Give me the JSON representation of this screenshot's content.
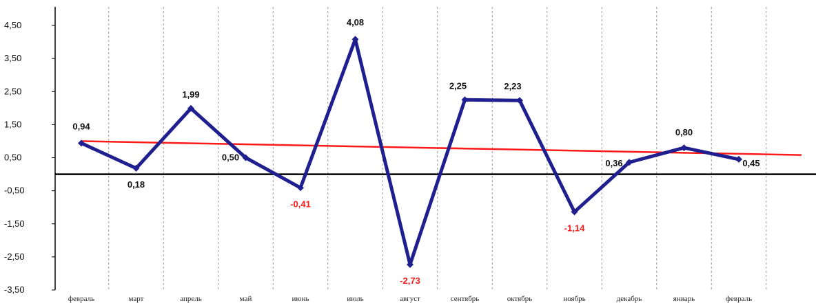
{
  "chart_data": {
    "type": "line",
    "title": "",
    "xlabel": "",
    "ylabel": "",
    "ylim": [
      -3.5,
      4.5
    ],
    "yticks": [
      "4,50",
      "3,50",
      "2,50",
      "1,50",
      "0,50",
      "-0,50",
      "-1,50",
      "-2,50",
      "-3,50"
    ],
    "ytick_values": [
      4.5,
      3.5,
      2.5,
      1.5,
      0.5,
      -0.5,
      -1.5,
      -2.5,
      -3.5
    ],
    "categories": [
      "февраль",
      "март",
      "апрель",
      "май",
      "июнь",
      "июль",
      "август",
      "сентябрь",
      "октябрь",
      "ноябрь",
      "декабрь",
      "январь",
      "февраль"
    ],
    "series": [
      {
        "values": [
          0.94,
          0.18,
          1.99,
          0.5,
          -0.41,
          4.08,
          -2.73,
          2.25,
          2.23,
          -1.14,
          0.36,
          0.8,
          0.45
        ],
        "labels": [
          "0,94",
          "0,18",
          "1,99",
          "0,50",
          "-0,41",
          "4,08",
          "-2,73",
          "2,25",
          "2,23",
          "-1,14",
          "0,36",
          "0,80",
          "0,45"
        ],
        "color": "#1f1f8f"
      },
      {
        "kind": "trendline",
        "start": 1.0,
        "end": 0.58,
        "color": "#ff1a1a"
      }
    ],
    "grid": {
      "vertical": true,
      "style": "dashed",
      "color": "#9a9a9a"
    },
    "zero_line_color": "#000000",
    "positive_label_color": "#111111",
    "negative_label_color": "#ff1a1a",
    "legend": "none"
  }
}
